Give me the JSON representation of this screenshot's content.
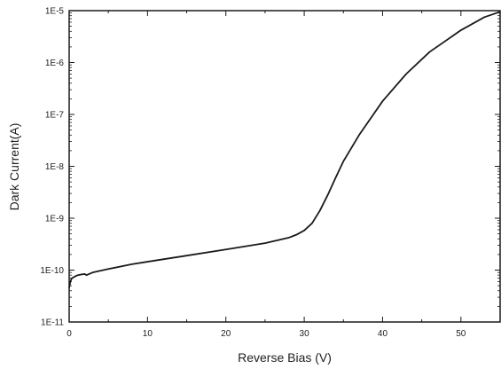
{
  "chart_data": {
    "type": "line",
    "title": "",
    "xlabel": "Reverse Bias (V)",
    "ylabel": "Dark Current(A)",
    "xlim": [
      0,
      55
    ],
    "ylim": [
      1e-11,
      1e-05
    ],
    "yscale": "log",
    "grid": false,
    "legend": "none",
    "line_color": "#1a1a1a",
    "x_ticks": [
      {
        "value": 0,
        "label": "0"
      },
      {
        "value": 10,
        "label": "10"
      },
      {
        "value": 20,
        "label": "20"
      },
      {
        "value": 30,
        "label": "30"
      },
      {
        "value": 40,
        "label": "40"
      },
      {
        "value": 50,
        "label": "50"
      }
    ],
    "y_ticks": [
      {
        "value": 1e-11,
        "label": "1E-11"
      },
      {
        "value": 1e-10,
        "label": "1E-10"
      },
      {
        "value": 1e-09,
        "label": "1E-9"
      },
      {
        "value": 1e-08,
        "label": "1E-8"
      },
      {
        "value": 1e-07,
        "label": "1E-7"
      },
      {
        "value": 1e-06,
        "label": "1E-6"
      },
      {
        "value": 1e-05,
        "label": "1E-5"
      }
    ],
    "series": [
      {
        "x": [
          0.0,
          0.15,
          0.3,
          0.5,
          0.8,
          1.0,
          1.5,
          2.0,
          2.2,
          3.0,
          5.0,
          8.0,
          10.0,
          15.0,
          20.0,
          25.0,
          28.0,
          29.0,
          30.0,
          31.0,
          32.0,
          33.0,
          34.0,
          35.0,
          37.0,
          40.0,
          43.0,
          46.0,
          50.0,
          53.0,
          55.0
        ],
        "y": [
          4.5e-11,
          6e-11,
          6.8e-11,
          7.2e-11,
          7.6e-11,
          7.9e-11,
          8.2e-11,
          8.4e-11,
          8e-11,
          9e-11,
          1.05e-10,
          1.3e-10,
          1.45e-10,
          1.9e-10,
          2.5e-10,
          3.3e-10,
          4.2e-10,
          4.8e-10,
          5.8e-10,
          8e-10,
          1.4e-09,
          2.8e-09,
          6e-09,
          1.25e-08,
          4e-08,
          1.8e-07,
          6e-07,
          1.6e-06,
          4.2e-06,
          7.5e-06,
          9.5e-06
        ]
      }
    ]
  }
}
